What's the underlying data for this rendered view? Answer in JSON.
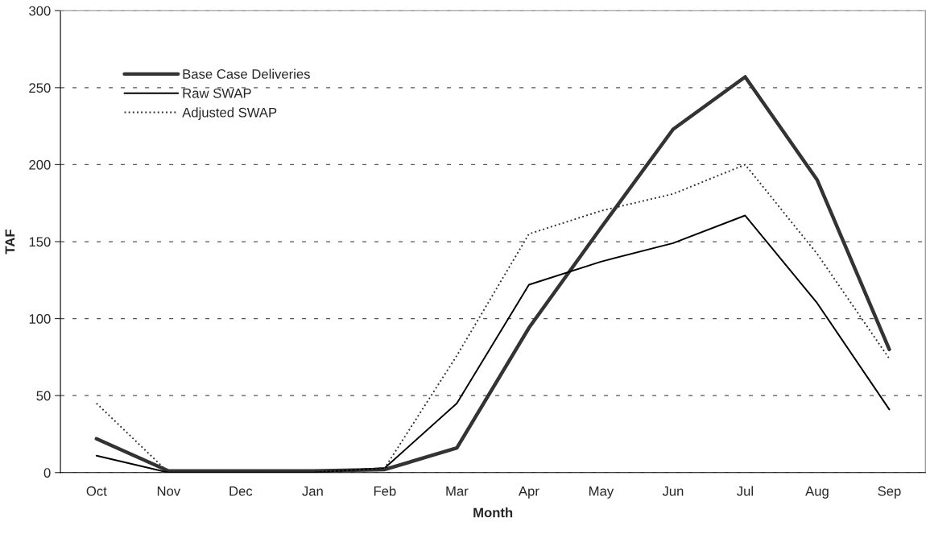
{
  "chart_data": {
    "type": "line",
    "xlabel": "Month",
    "ylabel": "TAF",
    "categories": [
      "Oct",
      "Nov",
      "Dec",
      "Jan",
      "Feb",
      "Mar",
      "Apr",
      "May",
      "Jun",
      "Jul",
      "Aug",
      "Sep"
    ],
    "series": [
      {
        "name": "Base Case Deliveries",
        "color": "#333333",
        "line_style": "solid",
        "values": [
          22,
          1,
          1,
          1,
          2,
          16,
          94,
          159,
          223,
          257,
          190,
          80
        ]
      },
      {
        "name": "Raw SWAP",
        "color": "#000000",
        "line_style": "solid",
        "values": [
          11,
          0,
          0,
          0,
          3,
          45,
          122,
          137,
          149,
          167,
          110,
          41
        ]
      },
      {
        "name": "Adjusted SWAP",
        "color": "#333333",
        "line_style": "dotted",
        "values": [
          45,
          0,
          0,
          0,
          3,
          76,
          155,
          170,
          181,
          200,
          142,
          74
        ]
      }
    ],
    "ylim": [
      0,
      300
    ],
    "yticks": [
      0,
      50,
      100,
      150,
      200,
      250,
      300
    ],
    "grid": "y",
    "legend": "top left",
    "marker": "none"
  }
}
